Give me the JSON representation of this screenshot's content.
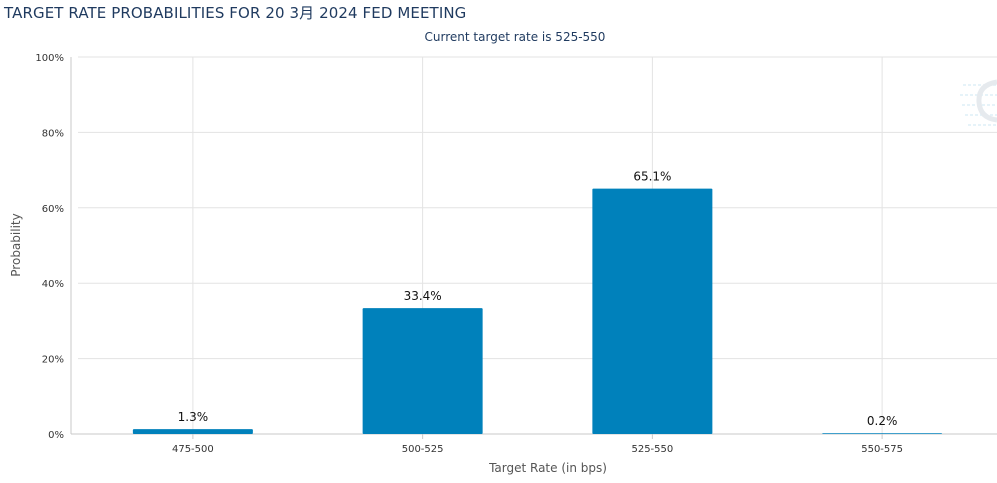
{
  "header": {
    "title": "TARGET RATE PROBABILITIES FOR 20 3月 2024 FED MEETING"
  },
  "chart_data": {
    "type": "bar",
    "title": "TARGET RATE PROBABILITIES FOR 20 3月 2024 FED MEETING",
    "subtitle": "Current target rate is 525-550",
    "xlabel": "Target Rate (in bps)",
    "ylabel": "Probability",
    "categories": [
      "475-500",
      "500-525",
      "525-550",
      "550-575"
    ],
    "values": [
      1.3,
      33.4,
      65.1,
      0.2
    ],
    "data_labels": [
      "1.3%",
      "33.4%",
      "65.1%",
      "0.2%"
    ],
    "ylim": [
      0,
      100
    ],
    "yticks": [
      0,
      20,
      40,
      60,
      80,
      100
    ],
    "ytick_labels": [
      "0%",
      "20%",
      "40%",
      "60%",
      "80%",
      "100%"
    ],
    "grid": true,
    "bar_color": "#0081bb",
    "gridline_color": "#e3e3e3"
  }
}
